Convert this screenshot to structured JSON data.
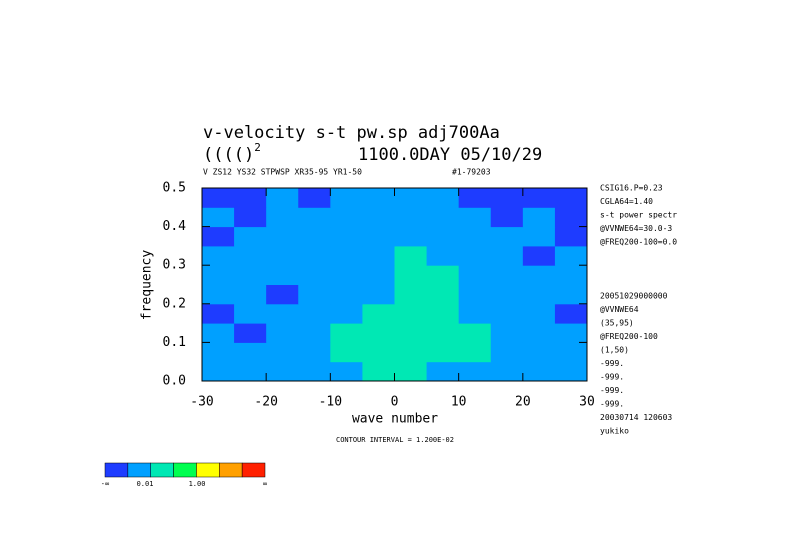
{
  "chart_data": {
    "type": "contour",
    "title": "v-velocity s-t pw.sp  adj700Aa",
    "title2_left": "(((()",
    "title2_sup": "2",
    "title2_right": "1100.0DAY 05/10/29",
    "subtitle": "V ZS12 YS32 STPWSP XR35-95 YR1-50",
    "subtitle_right": "#1-79203",
    "xlabel": "wave number",
    "ylabel": "frequency",
    "annotation": "CONTOUR INTERVAL = 1.200E-02",
    "xlim": [
      -30,
      30
    ],
    "xticks": [
      -30,
      -20,
      -10,
      0,
      10,
      20,
      30
    ],
    "ylim": [
      0,
      0.5
    ],
    "yticks": [
      {
        "value": 0,
        "label": "0.0"
      },
      0.1,
      0.2,
      0.3,
      0.4,
      0.5
    ],
    "x": [
      -27.5,
      -22.5,
      -17.5,
      -12.5,
      -7.5,
      -2.5,
      2.5,
      7.5,
      12.5,
      17.5,
      22.5,
      27.5
    ],
    "y": [
      0.025,
      0.075,
      0.125,
      0.175,
      0.225,
      0.275,
      0.325,
      0.375,
      0.425,
      0.475
    ],
    "z": [
      [
        0.008,
        0.008,
        0.008,
        0.008,
        0.01,
        0.014,
        0.014,
        0.01,
        0.008,
        0.008,
        0.008,
        0.008
      ],
      [
        0.008,
        0.008,
        0.008,
        0.01,
        0.014,
        0.014,
        0.014,
        0.014,
        0.014,
        0.01,
        0.008,
        0.008
      ],
      [
        0.008,
        0.004,
        0.008,
        0.008,
        0.014,
        0.014,
        0.014,
        0.014,
        0.014,
        0.008,
        0.008,
        0.008
      ],
      [
        0.004,
        0.008,
        0.008,
        0.008,
        0.01,
        0.014,
        0.014,
        0.014,
        0.01,
        0.008,
        0.008,
        0.004
      ],
      [
        0.008,
        0.008,
        0.004,
        0.008,
        0.008,
        0.01,
        0.014,
        0.014,
        0.01,
        0.008,
        0.008,
        0.008
      ],
      [
        0.008,
        0.008,
        0.008,
        0.008,
        0.008,
        0.01,
        0.014,
        0.014,
        0.008,
        0.008,
        0.008,
        0.008
      ],
      [
        0.008,
        0.008,
        0.008,
        0.008,
        0.008,
        0.01,
        0.014,
        0.01,
        0.008,
        0.008,
        0.004,
        0.008
      ],
      [
        0.004,
        0.008,
        0.008,
        0.008,
        0.008,
        0.008,
        0.01,
        0.008,
        0.008,
        0.008,
        0.008,
        0.004
      ],
      [
        0.008,
        0.004,
        0.008,
        0.008,
        0.008,
        0.008,
        0.008,
        0.008,
        0.008,
        0.004,
        0.008,
        0.004
      ],
      [
        0.004,
        0.004,
        0.008,
        0.004,
        0.008,
        0.008,
        0.008,
        0.008,
        0.004,
        0.004,
        0.004,
        0.004
      ]
    ],
    "levels": [
      0.005,
      0.012,
      0.024,
      0.036,
      0.048,
      0.06
    ],
    "colors": [
      "#1e3cff",
      "#00a0ff",
      "#00e8b4",
      "#00ff50",
      "#ffff00",
      "#ffa000",
      "#ff2000"
    ],
    "colorbar_labels": [
      "-∞",
      "0.01",
      "1.00",
      "∞"
    ],
    "side_text_top": [
      "CSIG16.P=0.23",
      "CGLA64=1.40",
      "s-t power spectr",
      "@VVNWE64=30.0-3",
      "@FREQ200-100=0.0"
    ],
    "side_text_bottom": [
      "20051029000000",
      "@VVNWE64",
      "(35,95)",
      "@FREQ200-100",
      "(1,50)",
      "-999.",
      "-999.",
      "-999.",
      "-999.",
      "20030714 120603",
      "yukiko"
    ]
  }
}
